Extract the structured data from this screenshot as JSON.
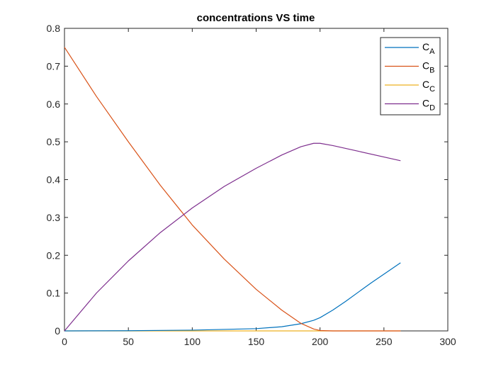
{
  "chart_data": {
    "type": "line",
    "title": "concentrations VS time",
    "xlabel": "",
    "ylabel": "",
    "xlim": [
      0,
      300
    ],
    "ylim": [
      0,
      0.8
    ],
    "xticks": [
      "0",
      "50",
      "100",
      "150",
      "200",
      "250",
      "300"
    ],
    "yticks": [
      "0",
      "0.1",
      "0.2",
      "0.3",
      "0.4",
      "0.5",
      "0.6",
      "0.7",
      "0.8"
    ],
    "xtick_values": [
      0,
      50,
      100,
      150,
      200,
      250,
      300
    ],
    "ytick_values": [
      0,
      0.1,
      0.2,
      0.3,
      0.4,
      0.5,
      0.6,
      0.7,
      0.8
    ],
    "grid": false,
    "legend_position": "top-right",
    "series": [
      {
        "name": "C",
        "sub": "A",
        "color": "#0072BD",
        "x": [
          0,
          50,
          100,
          150,
          170,
          185,
          195,
          200,
          210,
          220,
          240,
          263
        ],
        "y": [
          0,
          0.0005,
          0.002,
          0.006,
          0.011,
          0.019,
          0.028,
          0.035,
          0.055,
          0.078,
          0.127,
          0.18
        ]
      },
      {
        "name": "C",
        "sub": "B",
        "color": "#D95319",
        "x": [
          0,
          25,
          50,
          75,
          100,
          125,
          150,
          170,
          185,
          195,
          200,
          210,
          263
        ],
        "y": [
          0.75,
          0.62,
          0.5,
          0.385,
          0.28,
          0.19,
          0.11,
          0.055,
          0.02,
          0.005,
          0.001,
          0,
          0
        ]
      },
      {
        "name": "C",
        "sub": "C",
        "color": "#EDB120",
        "x": [
          0,
          263
        ],
        "y": [
          0,
          0
        ]
      },
      {
        "name": "C",
        "sub": "D",
        "color": "#7E2F8E",
        "x": [
          0,
          25,
          50,
          75,
          100,
          125,
          150,
          170,
          185,
          195,
          200,
          210,
          230,
          263
        ],
        "y": [
          0,
          0.1,
          0.185,
          0.26,
          0.325,
          0.382,
          0.43,
          0.465,
          0.487,
          0.496,
          0.496,
          0.49,
          0.475,
          0.45
        ]
      }
    ]
  }
}
